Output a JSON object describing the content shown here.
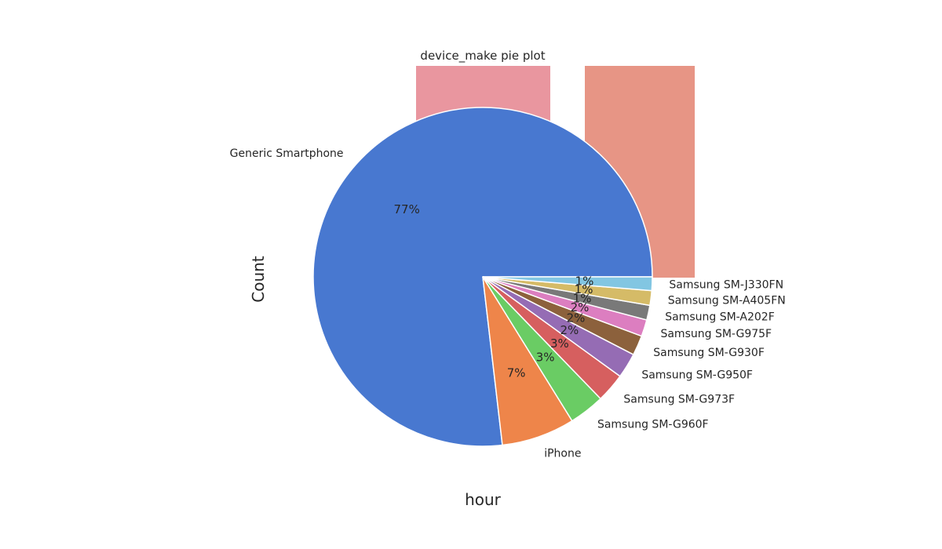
{
  "chart_data": {
    "type": "pie",
    "title": "device_make pie plot",
    "xlabel": "hour",
    "ylabel": "Count",
    "slices": [
      {
        "label": "Generic Smartphone",
        "value": 77,
        "pct_label": "77%",
        "color": "#4878d0"
      },
      {
        "label": "iPhone",
        "value": 7,
        "pct_label": "7%",
        "color": "#ee854a"
      },
      {
        "label": "Samsung SM-G960F",
        "value": 3.4,
        "pct_label": "3%",
        "color": "#6acc64"
      },
      {
        "label": "Samsung SM-G973F",
        "value": 2.8,
        "pct_label": "3%",
        "color": "#d65f5f"
      },
      {
        "label": "Samsung SM-G950F",
        "value": 2.4,
        "pct_label": "2%",
        "color": "#956cb4"
      },
      {
        "label": "Samsung SM-G930F",
        "value": 1.9,
        "pct_label": "2%",
        "color": "#8c613c"
      },
      {
        "label": "Samsung SM-G975F",
        "value": 1.6,
        "pct_label": "2%",
        "color": "#dc7ec0"
      },
      {
        "label": "Samsung SM-A202F",
        "value": 1.4,
        "pct_label": "1%",
        "color": "#797979"
      },
      {
        "label": "Samsung SM-A405FN",
        "value": 1.4,
        "pct_label": "1%",
        "color": "#d5bb67"
      },
      {
        "label": "Samsung SM-J330FN",
        "value": 1.3,
        "pct_label": "1%",
        "color": "#82c6e2"
      }
    ],
    "background_bars": [
      {
        "color": "#e9969f"
      },
      {
        "color": "#e79585"
      }
    ]
  }
}
